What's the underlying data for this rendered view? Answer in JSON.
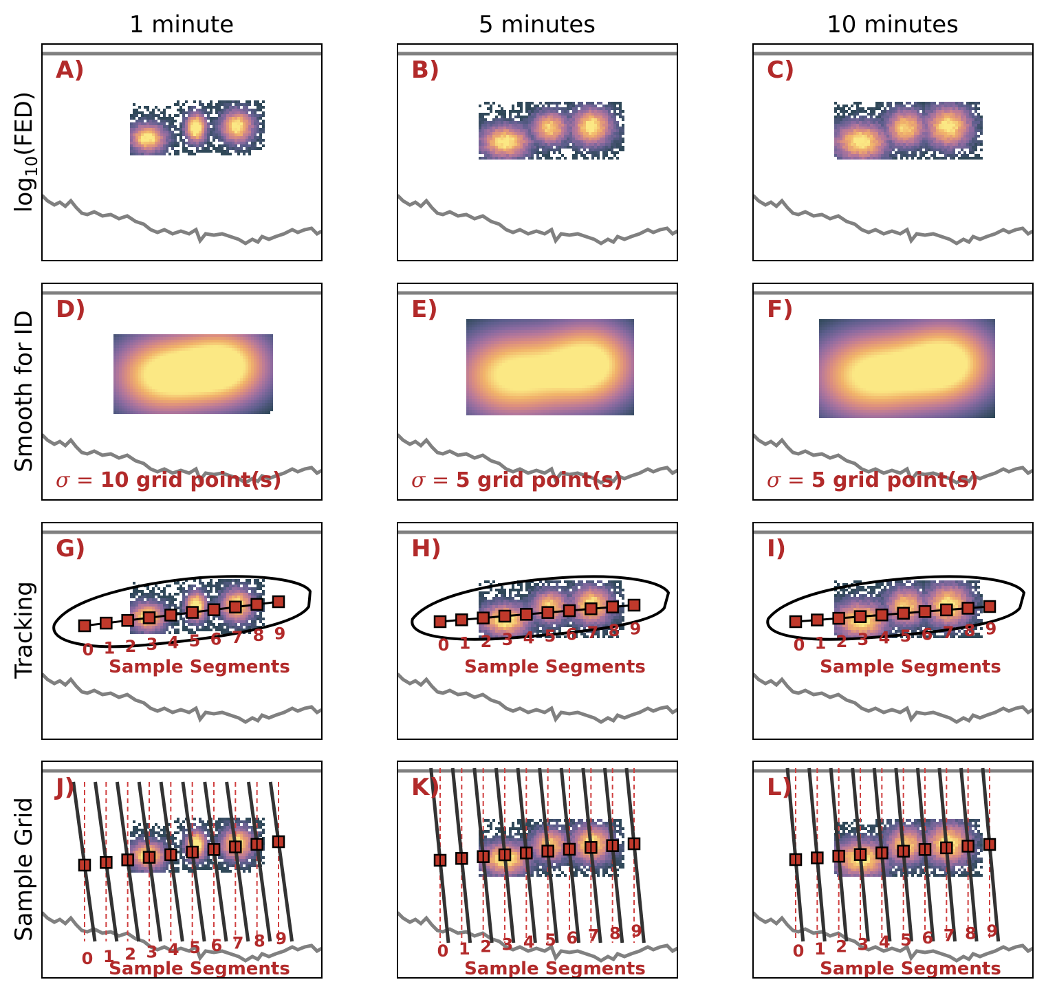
{
  "columns": [
    "1 minute",
    "5 minutes",
    "10 minutes"
  ],
  "rows": [
    {
      "pre": "log",
      "sub": "10",
      "post": "(FED)"
    },
    {
      "pre": "Smooth for ID",
      "sub": "",
      "post": ""
    },
    {
      "pre": "Tracking",
      "sub": "",
      "post": ""
    },
    {
      "pre": "Sample Grid",
      "sub": "",
      "post": ""
    }
  ],
  "panel_labels": [
    "A)",
    "B)",
    "C)",
    "D)",
    "E)",
    "F)",
    "G)",
    "H)",
    "I)",
    "J)",
    "K)",
    "L)"
  ],
  "sigma_prefix": "σ",
  "sigma_equals": " = ",
  "sigma_texts": [
    "10 grid point(s)",
    "5 grid point(s)",
    "5 grid point(s)"
  ],
  "segment_caption": "Sample Segments",
  "segment_numbers": [
    "0",
    "1",
    "2",
    "3",
    "4",
    "5",
    "6",
    "7",
    "8",
    "9"
  ],
  "colors": {
    "label_red": "#b22a2a",
    "marker_fill": "#c0392b",
    "boundary_gray": "#808080",
    "track_black": "#000000",
    "grid_line": "#333333",
    "dashed_line": "#d04040",
    "cmap": [
      "#2f4858",
      "#5c5e8c",
      "#8a6aa0",
      "#b7789a",
      "#dd8f7e",
      "#f1b36a",
      "#fbe884"
    ]
  }
}
